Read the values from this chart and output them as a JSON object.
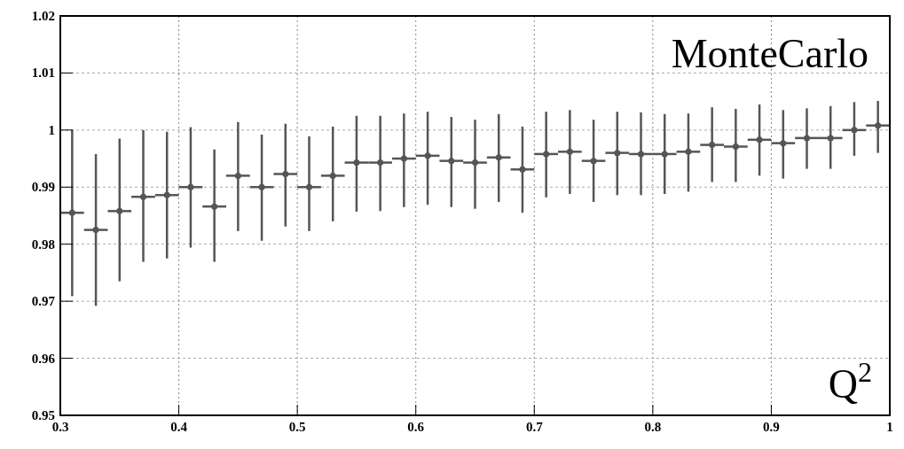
{
  "chart_data": {
    "type": "scatter",
    "xlabel": "Q$^{2}$",
    "annotations": [
      "MonteCarlo"
    ],
    "x": [
      0.31,
      0.33,
      0.35,
      0.37,
      0.39,
      0.41,
      0.43,
      0.45,
      0.47,
      0.49,
      0.51,
      0.53,
      0.55,
      0.57,
      0.59,
      0.61,
      0.63,
      0.65,
      0.67,
      0.69,
      0.71,
      0.73,
      0.75,
      0.77,
      0.79,
      0.81,
      0.83,
      0.85,
      0.87,
      0.89,
      0.91,
      0.93,
      0.95,
      0.97,
      0.99
    ],
    "values": [
      0.9855,
      0.9825,
      0.9858,
      0.9883,
      0.9886,
      0.99,
      0.9866,
      0.992,
      0.99,
      0.9923,
      0.99,
      0.992,
      0.9943,
      0.9943,
      0.995,
      0.9955,
      0.9946,
      0.9943,
      0.9952,
      0.9931,
      0.9958,
      0.9962,
      0.9946,
      0.996,
      0.9958,
      0.9958,
      0.9962,
      0.9974,
      0.9971,
      0.9983,
      0.9977,
      0.9986,
      0.9986,
      1.0,
      1.0008
    ],
    "errors": [
      [
        0.9709,
        1.0
      ],
      [
        0.9692,
        0.9958
      ],
      [
        0.9735,
        0.9985
      ],
      [
        0.9769,
        1.0
      ],
      [
        0.9775,
        0.9997
      ],
      [
        0.9794,
        1.0005
      ],
      [
        0.9769,
        0.9966
      ],
      [
        0.9823,
        1.0014
      ],
      [
        0.9806,
        0.9992
      ],
      [
        0.9831,
        1.0011
      ],
      [
        0.9823,
        0.9989
      ],
      [
        0.984,
        1.0006
      ],
      [
        0.9857,
        1.0025
      ],
      [
        0.9858,
        1.0025
      ],
      [
        0.9865,
        1.0029
      ],
      [
        0.9869,
        1.0032
      ],
      [
        0.9865,
        1.0023
      ],
      [
        0.9862,
        1.0018
      ],
      [
        0.9874,
        1.0028
      ],
      [
        0.9855,
        1.0006
      ],
      [
        0.9882,
        1.0032
      ],
      [
        0.9888,
        1.0035
      ],
      [
        0.9874,
        1.0018
      ],
      [
        0.9886,
        1.0032
      ],
      [
        0.9886,
        1.0031
      ],
      [
        0.9888,
        1.0028
      ],
      [
        0.9892,
        1.0029
      ],
      [
        0.9909,
        1.004
      ],
      [
        0.9909,
        1.0037
      ],
      [
        0.992,
        1.0045
      ],
      [
        0.9915,
        1.0035
      ],
      [
        0.9932,
        1.0038
      ],
      [
        0.9932,
        1.0042
      ],
      [
        0.9955,
        1.0049
      ],
      [
        0.996,
        1.0051
      ]
    ],
    "xerrors": [
      0.01,
      0.01,
      0.01,
      0.01,
      0.01,
      0.01,
      0.01,
      0.01,
      0.01,
      0.01,
      0.01,
      0.01,
      0.01,
      0.01,
      0.01,
      0.01,
      0.01,
      0.01,
      0.01,
      0.01,
      0.01,
      0.01,
      0.01,
      0.01,
      0.01,
      0.01,
      0.01,
      0.01,
      0.01,
      0.01,
      0.01,
      0.01,
      0.01,
      0.01,
      0.01
    ],
    "color": "#555555",
    "marker": "circle",
    "xlim": [
      0.3,
      1
    ],
    "xticks": [
      0.3,
      0.4,
      0.5,
      0.6,
      0.7,
      0.8,
      0.9,
      1
    ],
    "ylim": [
      0.95,
      1.02
    ],
    "yticks": [
      0.95,
      0.96,
      0.97,
      0.98,
      0.99,
      1,
      1.01,
      1.02
    ],
    "grid": true
  }
}
